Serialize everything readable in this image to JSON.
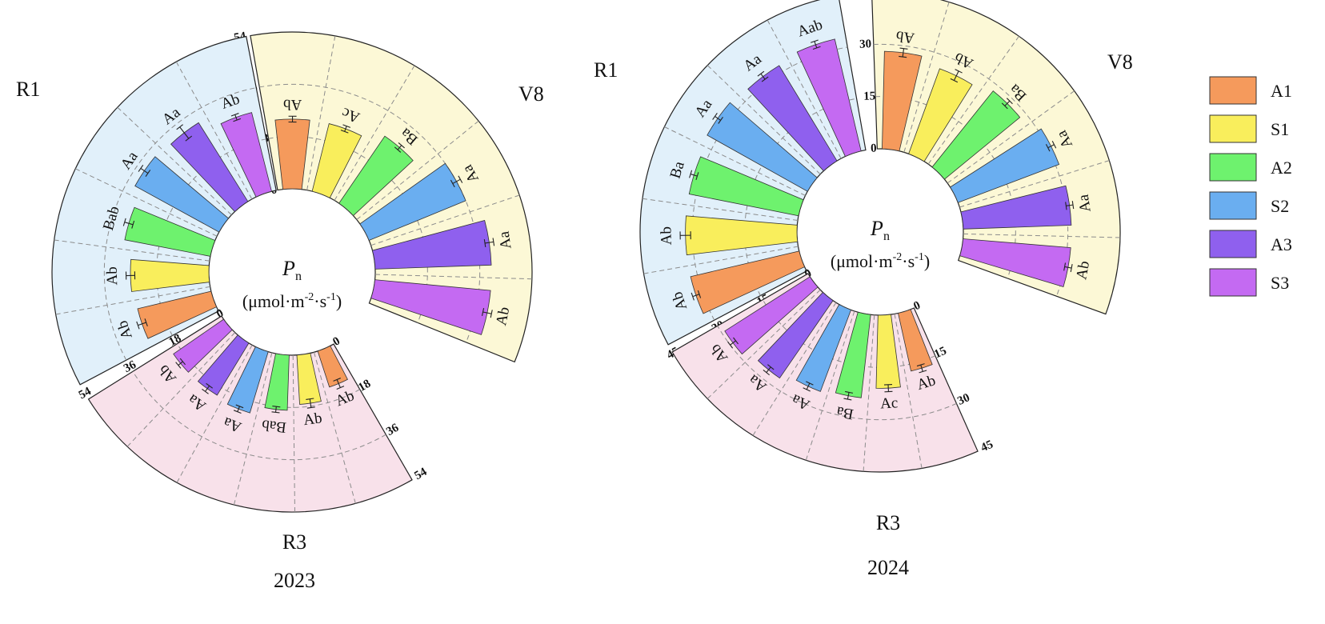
{
  "legend": [
    {
      "key": "A1",
      "label": "A1",
      "color": "#f59a5c"
    },
    {
      "key": "S1",
      "label": "S1",
      "color": "#f9ee5c"
    },
    {
      "key": "A2",
      "label": "A2",
      "color": "#6ef26e"
    },
    {
      "key": "S2",
      "label": "S2",
      "color": "#6aaef0"
    },
    {
      "key": "A3",
      "label": "A3",
      "color": "#8f60ee"
    },
    {
      "key": "S3",
      "label": "S3",
      "color": "#c46af2"
    }
  ],
  "center_label": {
    "symbol": "P",
    "subscript": "n",
    "unit_pre": "(μmol·m",
    "unit_exp1": "-2",
    "unit_mid": "·s",
    "unit_exp2": "-1",
    "unit_post": ")"
  },
  "stage_colors": {
    "V8": "#fcf8d6",
    "R1": "#e1f0fa",
    "R3": "#f8e1ea"
  },
  "chart_data": [
    {
      "type": "bar",
      "layout": "polar",
      "year": "2023",
      "title": "2023",
      "rlim": [
        0,
        54
      ],
      "ticks": [
        0,
        18,
        36,
        54
      ],
      "tick_labels": [
        "0",
        "18",
        "36",
        "54"
      ],
      "stages": [
        {
          "name": "V8",
          "categories": [
            "A1",
            "S1",
            "A2",
            "S2",
            "A3",
            "S3"
          ],
          "values": [
            24,
            24,
            28,
            36,
            40,
            40
          ],
          "errors": [
            1,
            1,
            1,
            1.5,
            1.5,
            1.5
          ],
          "labels": [
            "Ab",
            "Ac",
            "Ba",
            "Aa",
            "Aa",
            "Ab"
          ]
        },
        {
          "name": "R1",
          "categories": [
            "A1",
            "S1",
            "A2",
            "S2",
            "A3",
            "S3"
          ],
          "values": [
            26,
            27,
            30,
            33,
            32,
            28
          ],
          "errors": [
            1.5,
            1.5,
            1.5,
            1.5,
            2.5,
            1
          ],
          "labels": [
            "Ab",
            "Ab",
            "Bab",
            "Aa",
            "Aa",
            "Ab"
          ]
        },
        {
          "name": "R3",
          "categories": [
            "A1",
            "S1",
            "A2",
            "S2",
            "A3",
            "S3"
          ],
          "values": [
            13,
            17,
            19,
            22,
            21,
            21
          ],
          "errors": [
            1.5,
            1.5,
            1,
            1,
            1.2,
            1
          ],
          "labels": [
            "Ab",
            "Ab",
            "Bab",
            "Aa",
            "Aa",
            "Ab"
          ]
        }
      ]
    },
    {
      "type": "bar",
      "layout": "polar",
      "year": "2024",
      "title": "2024",
      "rlim": [
        0,
        45
      ],
      "ticks": [
        0,
        15,
        30,
        45
      ],
      "tick_labels": [
        "0",
        "15",
        "30",
        "45"
      ],
      "stages": [
        {
          "name": "V8",
          "categories": [
            "A1",
            "S1",
            "A2",
            "S2",
            "A3",
            "S3"
          ],
          "values": [
            28,
            26,
            28,
            31,
            31,
            31
          ],
          "errors": [
            1.2,
            1.5,
            1,
            1,
            1,
            1
          ],
          "labels": [
            "Ab",
            "Ab",
            "Ba",
            "Aa",
            "Aa",
            "Ab"
          ]
        },
        {
          "name": "R1",
          "categories": [
            "A1",
            "S1",
            "A2",
            "S2",
            "A3",
            "S3"
          ],
          "values": [
            32,
            32,
            32,
            33,
            32,
            33
          ],
          "errors": [
            1,
            1.5,
            1,
            1,
            1,
            1
          ],
          "labels": [
            "Ab",
            "Ab",
            "Ba",
            "Aa",
            "Aa",
            "Aab"
          ]
        },
        {
          "name": "R3",
          "categories": [
            "A1",
            "S1",
            "A2",
            "S2",
            "A3",
            "S3"
          ],
          "values": [
            17,
            21,
            24,
            25,
            27,
            29
          ],
          "errors": [
            1,
            1,
            1,
            1,
            1,
            1
          ],
          "labels": [
            "Ab",
            "Ac",
            "Ba",
            "Aa",
            "Aa",
            "Ab"
          ]
        }
      ]
    }
  ]
}
